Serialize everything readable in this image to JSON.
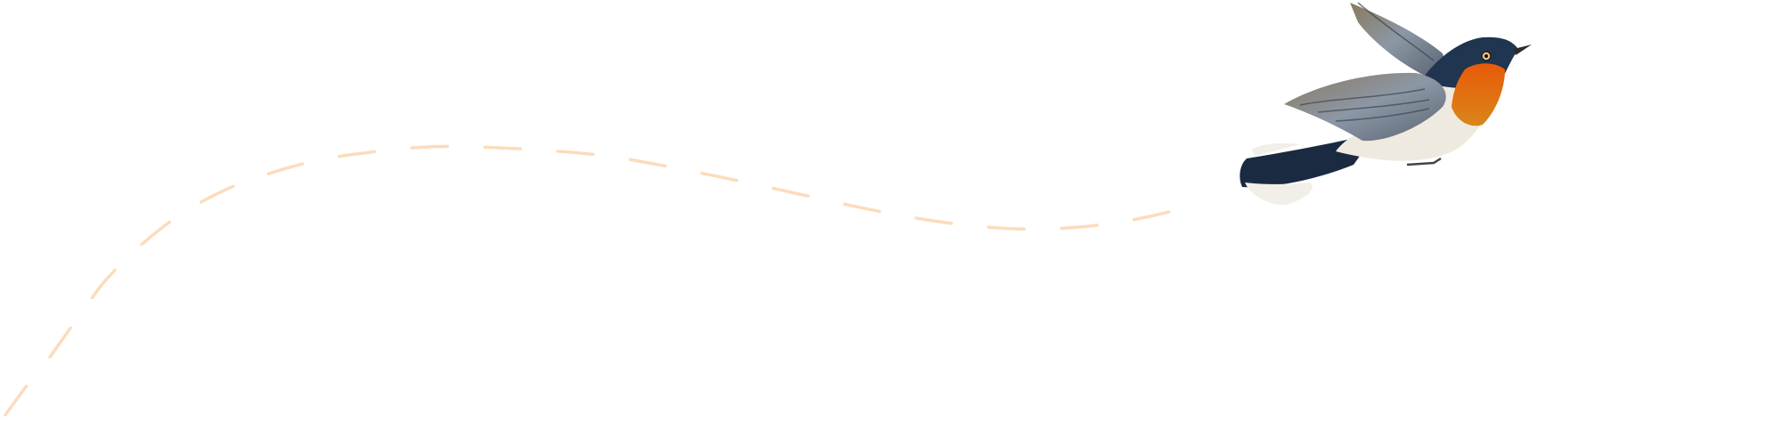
{
  "illustration": {
    "subject": "bird-in-flight",
    "colors": {
      "background": "#ffffff",
      "flight_path": "#fcdcbc",
      "bird_back": "#1f3550",
      "bird_throat": "#e0620e",
      "bird_belly": "#efeae0",
      "bird_wing": "#7c8490",
      "bird_tail_tip": "#f2efe8"
    }
  }
}
